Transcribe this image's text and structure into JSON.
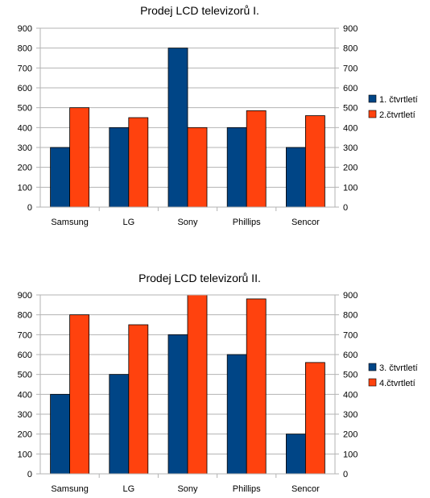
{
  "chart_data": [
    {
      "type": "bar",
      "title": "Prodej LCD televizorů I.",
      "categories": [
        "Samsung",
        "LG",
        "Sony",
        "Phillips",
        "Sencor"
      ],
      "series": [
        {
          "name": "1. čtvrtletí",
          "values": [
            300,
            400,
            800,
            400,
            300
          ],
          "color": "#004586"
        },
        {
          "name": "2.čtvrtletí",
          "values": [
            500,
            450,
            400,
            485,
            460
          ],
          "color": "#ff420e"
        }
      ],
      "ylim": [
        0,
        900
      ],
      "yticks": [
        "0",
        "100",
        "200",
        "300",
        "400",
        "500",
        "600",
        "700",
        "800",
        "900"
      ],
      "grid": true,
      "legend": "right"
    },
    {
      "type": "bar",
      "title": "Prodej LCD televizorů II.",
      "categories": [
        "Samsung",
        "LG",
        "Sony",
        "Phillips",
        "Sencor"
      ],
      "series": [
        {
          "name": "3. čtvrtletí",
          "values": [
            400,
            500,
            700,
            600,
            200
          ],
          "color": "#004586"
        },
        {
          "name": "4.čtvrtletí",
          "values": [
            800,
            750,
            900,
            880,
            560
          ],
          "color": "#ff420e"
        }
      ],
      "ylim": [
        0,
        900
      ],
      "yticks": [
        "0",
        "100",
        "200",
        "300",
        "400",
        "500",
        "600",
        "700",
        "800",
        "900"
      ],
      "grid": true,
      "legend": "right"
    }
  ]
}
